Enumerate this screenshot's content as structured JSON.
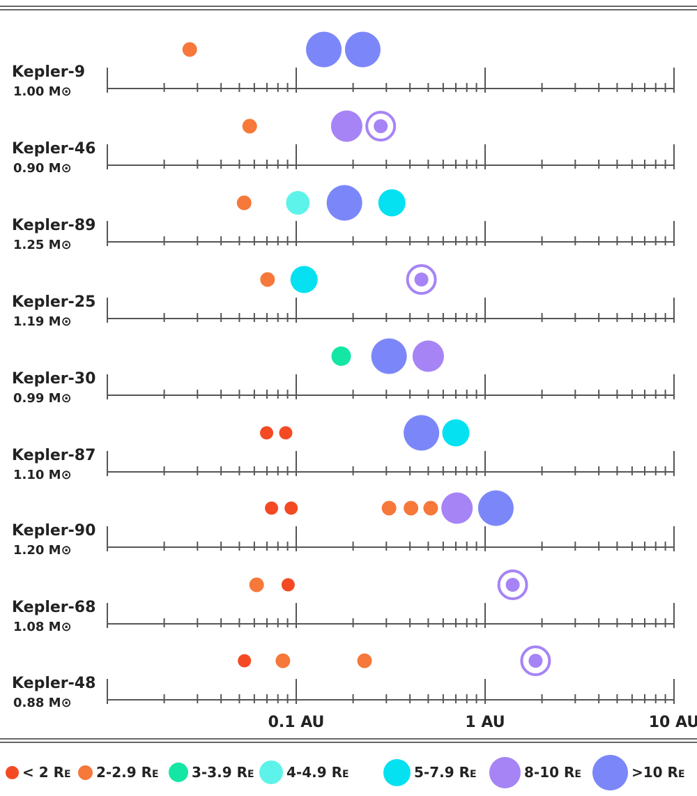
{
  "systems": [
    {
      "name": "Kepler-9",
      "mass": "1.00 M⊙",
      "planets": [
        {
          "a": 0.0273,
          "size": "2-2.9"
        },
        {
          "a": 0.14,
          "size": ">10"
        },
        {
          "a": 0.225,
          "size": ">10"
        }
      ]
    },
    {
      "name": "Kepler-46",
      "mass": "0.90 M⊙",
      "planets": [
        {
          "a": 0.0567,
          "size": "2-2.9"
        },
        {
          "a": 0.185,
          "size": "8-10"
        },
        {
          "a": 0.28,
          "size": "8-10",
          "non_transiting": true
        }
      ]
    },
    {
      "name": "Kepler-89",
      "mass": "1.25 M⊙",
      "planets": [
        {
          "a": 0.053,
          "size": "2-2.9"
        },
        {
          "a": 0.102,
          "size": "4-4.9"
        },
        {
          "a": 0.18,
          "size": ">10"
        },
        {
          "a": 0.321,
          "size": "5-7.9"
        }
      ]
    },
    {
      "name": "Kepler-25",
      "mass": "1.19 M⊙",
      "planets": [
        {
          "a": 0.0705,
          "size": "2-2.9"
        },
        {
          "a": 0.11,
          "size": "5-7.9"
        },
        {
          "a": 0.46,
          "size": "8-10",
          "non_transiting": true
        }
      ]
    },
    {
      "name": "Kepler-30",
      "mass": "0.99 M⊙",
      "planets": [
        {
          "a": 0.173,
          "size": "3-3.9"
        },
        {
          "a": 0.31,
          "size": ">10"
        },
        {
          "a": 0.5,
          "size": "8-10"
        }
      ]
    },
    {
      "name": "Kepler-87",
      "mass": "1.10 M⊙",
      "planets": [
        {
          "a": 0.0697,
          "size": "< 2"
        },
        {
          "a": 0.088,
          "size": "< 2"
        },
        {
          "a": 0.46,
          "size": ">10"
        },
        {
          "a": 0.7,
          "size": "5-7.9"
        }
      ]
    },
    {
      "name": "Kepler-90",
      "mass": "1.20 M⊙",
      "planets": [
        {
          "a": 0.074,
          "size": "< 2"
        },
        {
          "a": 0.094,
          "size": "< 2"
        },
        {
          "a": 0.31,
          "size": "2-2.9"
        },
        {
          "a": 0.405,
          "size": "2-2.9"
        },
        {
          "a": 0.515,
          "size": "2-2.9"
        },
        {
          "a": 0.71,
          "size": "8-10"
        },
        {
          "a": 1.14,
          "size": ">10"
        }
      ]
    },
    {
      "name": "Kepler-68",
      "mass": "1.08 M⊙",
      "planets": [
        {
          "a": 0.0617,
          "size": "2-2.9"
        },
        {
          "a": 0.0906,
          "size": "< 2"
        },
        {
          "a": 1.4,
          "size": "8-10",
          "non_transiting": true
        }
      ]
    },
    {
      "name": "Kepler-48",
      "mass": "0.88 M⊙",
      "planets": [
        {
          "a": 0.0532,
          "size": "< 2"
        },
        {
          "a": 0.085,
          "size": "2-2.9"
        },
        {
          "a": 0.23,
          "size": "2-2.9"
        },
        {
          "a": 1.85,
          "size": "8-10",
          "non_transiting": true
        }
      ]
    }
  ],
  "axis": {
    "scale": "log",
    "range_au": [
      0.01,
      10
    ],
    "tick_labels": [
      {
        "value": 0.1,
        "label": "0.1 AU"
      },
      {
        "value": 1,
        "label": "1 AU"
      },
      {
        "value": 10,
        "label": "10 AU"
      }
    ]
  },
  "legend": [
    {
      "key": "< 2",
      "label": "< 2 R",
      "color": "#f44a24"
    },
    {
      "key": "2-2.9",
      "label": "2-2.9 R",
      "color": "#f6783a"
    },
    {
      "key": "3-3.9",
      "label": "3-3.9 R",
      "color": "#14e6a4"
    },
    {
      "key": "4-4.9",
      "label": "4-4.9 R",
      "color": "#5ef3ea"
    },
    {
      "key": "5-7.9",
      "label": "5-7.9 R",
      "color": "#05e1f1"
    },
    {
      "key": "8-10",
      "label": "8-10 R",
      "color": "#a684f5"
    },
    {
      "key": ">10",
      "label": ">10 R",
      "color": "#7b87f9"
    }
  ],
  "legend_subscript": "E"
}
